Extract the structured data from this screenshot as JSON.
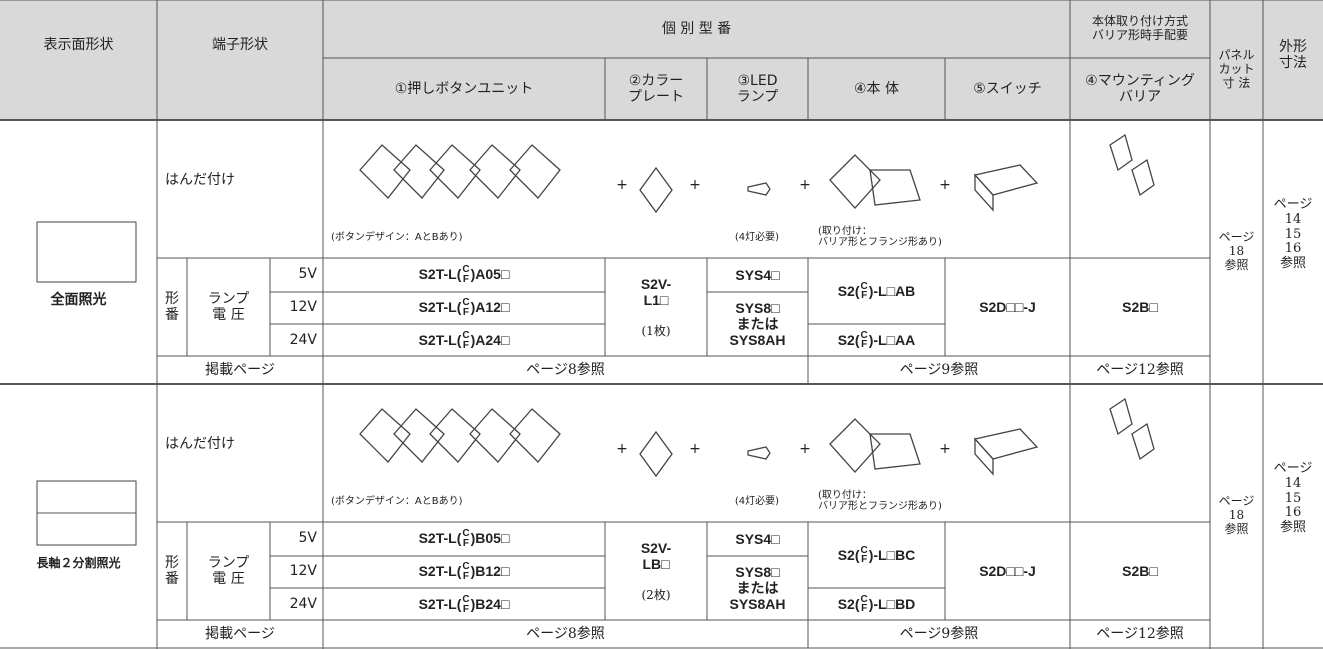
{
  "header": {
    "display_shape": "表示面形状",
    "terminal_shape": "端子形状",
    "individual_model": "個 別 型 番",
    "mount_method": [
      "本体取り付け方式",
      "バリア形時手配要"
    ],
    "panel_cut": [
      "パネル",
      "カット",
      "寸 法"
    ],
    "outline": [
      "外形",
      "寸法"
    ],
    "columns": [
      [
        "①押しボタンユニット"
      ],
      [
        "②カラー",
        "プレート"
      ],
      [
        "③LED",
        "ランプ"
      ],
      [
        "④本 体"
      ],
      [
        "⑤スイッチ"
      ],
      [
        "④マウンティング",
        "バリア"
      ]
    ]
  },
  "plus": "+",
  "sections": [
    {
      "display_label": "全面照光",
      "terminal": "はんだ付け",
      "button_note": "(ボタンデザイン：AとBあり)",
      "led_note": "(4灯必要)",
      "body_note": [
        "(取り付け：",
        "バリア形とフランジ形あり)"
      ],
      "model_label": [
        "形",
        "番"
      ],
      "voltage_label": [
        "ランプ",
        "電 圧"
      ],
      "voltages": [
        "5V",
        "12V",
        "24V"
      ],
      "button_units": [
        {
          "prefix": "S2T-L(",
          "top": "C",
          "bottom": "F",
          "suffix": ")A05□"
        },
        {
          "prefix": "S2T-L(",
          "top": "C",
          "bottom": "F",
          "suffix": ")A12□"
        },
        {
          "prefix": "S2T-L(",
          "top": "C",
          "bottom": "F",
          "suffix": ")A24□"
        }
      ],
      "color_plate": [
        "S2V-",
        "L1□"
      ],
      "plate_qty": "(1枚)",
      "leds": [
        "SYS4□",
        "SYS8□",
        "または",
        "SYS8AH"
      ],
      "bodies": [
        {
          "prefix": "S2(",
          "top": "C",
          "bottom": "F",
          "suffix": ")-L□AB"
        },
        {
          "prefix": "S2(",
          "top": "C",
          "bottom": "F",
          "suffix": ")-L□AA"
        }
      ],
      "switch": "S2D□□-J",
      "barrier": "S2B□",
      "page_label": "掲載ページ",
      "pages": [
        "ページ8参照",
        "ページ9参照",
        "ページ12参照"
      ],
      "panel_cut": [
        "ページ",
        "18",
        "参照"
      ],
      "outline": [
        "ページ",
        "14",
        "15",
        "16",
        "参照"
      ]
    },
    {
      "display_label": "長軸２分割照光",
      "terminal": "はんだ付け",
      "button_note": "(ボタンデザイン：AとBあり)",
      "led_note": "(4灯必要)",
      "body_note": [
        "(取り付け：",
        "バリア形とフランジ形あり)"
      ],
      "model_label": [
        "形",
        "番"
      ],
      "voltage_label": [
        "ランプ",
        "電 圧"
      ],
      "voltages": [
        "5V",
        "12V",
        "24V"
      ],
      "button_units": [
        {
          "prefix": "S2T-L(",
          "top": "C",
          "bottom": "F",
          "suffix": ")B05□"
        },
        {
          "prefix": "S2T-L(",
          "top": "C",
          "bottom": "F",
          "suffix": ")B12□"
        },
        {
          "prefix": "S2T-L(",
          "top": "C",
          "bottom": "F",
          "suffix": ")B24□"
        }
      ],
      "color_plate": [
        "S2V-",
        "LB□"
      ],
      "plate_qty": "(2枚)",
      "leds": [
        "SYS4□",
        "SYS8□",
        "または",
        "SYS8AH"
      ],
      "bodies": [
        {
          "prefix": "S2(",
          "top": "C",
          "bottom": "F",
          "suffix": ")-L□BC"
        },
        {
          "prefix": "S2(",
          "top": "C",
          "bottom": "F",
          "suffix": ")-L□BD"
        }
      ],
      "switch": "S2D□□-J",
      "barrier": "S2B□",
      "page_label": "掲載ページ",
      "pages": [
        "ページ8参照",
        "ページ9参照",
        "ページ12参照"
      ],
      "panel_cut": [
        "ページ",
        "18",
        "参照"
      ],
      "outline": [
        "ページ",
        "14",
        "15",
        "16",
        "参照"
      ]
    }
  ]
}
